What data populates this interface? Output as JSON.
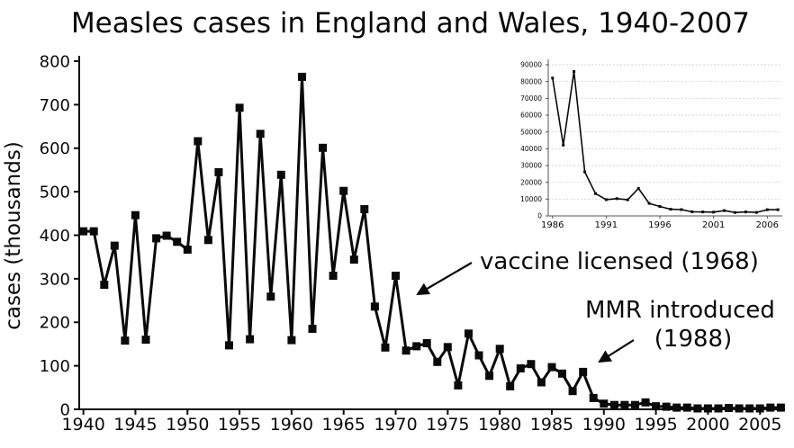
{
  "title": "Measles cases in England and Wales, 1940-2007",
  "annotations": {
    "vaccine_label": "vaccine licensed (1968)",
    "mmr_line1": "MMR introduced",
    "mmr_line2": "(1988)"
  },
  "colors": {
    "line": "#0a0a0a",
    "axis": "#0a0a0a",
    "inset_grid": "#c8c8c8"
  },
  "chart_data": [
    {
      "type": "line",
      "title": "Measles cases in England and Wales, 1940-2007",
      "xlabel": "",
      "ylabel": "cases (thousands)",
      "xlim": [
        1940,
        2007
      ],
      "ylim": [
        0,
        800
      ],
      "grid": false,
      "legend": "none",
      "marker": "square",
      "x_ticks": [
        1940,
        1945,
        1950,
        1955,
        1960,
        1965,
        1970,
        1975,
        1980,
        1985,
        1990,
        1995,
        2000,
        2005
      ],
      "y_ticks": [
        0,
        100,
        200,
        300,
        400,
        500,
        600,
        700,
        800
      ],
      "x": [
        1940,
        1941,
        1942,
        1943,
        1944,
        1945,
        1946,
        1947,
        1948,
        1949,
        1950,
        1951,
        1952,
        1953,
        1954,
        1955,
        1956,
        1957,
        1958,
        1959,
        1960,
        1961,
        1962,
        1963,
        1964,
        1965,
        1966,
        1967,
        1968,
        1969,
        1970,
        1971,
        1972,
        1973,
        1974,
        1975,
        1976,
        1977,
        1978,
        1979,
        1980,
        1981,
        1982,
        1983,
        1984,
        1985,
        1986,
        1987,
        1988,
        1989,
        1990,
        1991,
        1992,
        1993,
        1994,
        1995,
        1996,
        1997,
        1998,
        1999,
        2000,
        2001,
        2002,
        2003,
        2004,
        2005,
        2006,
        2007
      ],
      "values": [
        409,
        409,
        286,
        376,
        158,
        446,
        160,
        393,
        399,
        385,
        367,
        616,
        389,
        545,
        147,
        693,
        161,
        633,
        259,
        539,
        159,
        764,
        185,
        601,
        307,
        502,
        344,
        460,
        236,
        142,
        307,
        135,
        145,
        152,
        109,
        143,
        55,
        174,
        124,
        77,
        139,
        53,
        94,
        104,
        62,
        97,
        82,
        42,
        86,
        26,
        13,
        10,
        10,
        10,
        16,
        7,
        6,
        4,
        4,
        2,
        2,
        2,
        3,
        2,
        2,
        2,
        4,
        4
      ]
    },
    {
      "type": "line",
      "title": "",
      "xlabel": "",
      "ylabel": "",
      "xlim": [
        1986,
        2007
      ],
      "ylim": [
        0,
        90000
      ],
      "grid": true,
      "legend": "none",
      "marker": "square",
      "x_ticks": [
        1986,
        1991,
        1996,
        2001,
        2006
      ],
      "y_ticks": [
        0,
        10000,
        20000,
        30000,
        40000,
        50000,
        60000,
        70000,
        80000,
        90000
      ],
      "x": [
        1986,
        1987,
        1988,
        1989,
        1990,
        1991,
        1992,
        1993,
        1994,
        1995,
        1996,
        1997,
        1998,
        1999,
        2000,
        2001,
        2002,
        2003,
        2004,
        2005,
        2006,
        2007
      ],
      "values": [
        82061,
        42165,
        86001,
        26222,
        13302,
        9680,
        10268,
        9612,
        16375,
        7447,
        5614,
        3962,
        3728,
        2438,
        2378,
        2250,
        3187,
        2048,
        2356,
        2089,
        3705,
        3670
      ]
    }
  ]
}
